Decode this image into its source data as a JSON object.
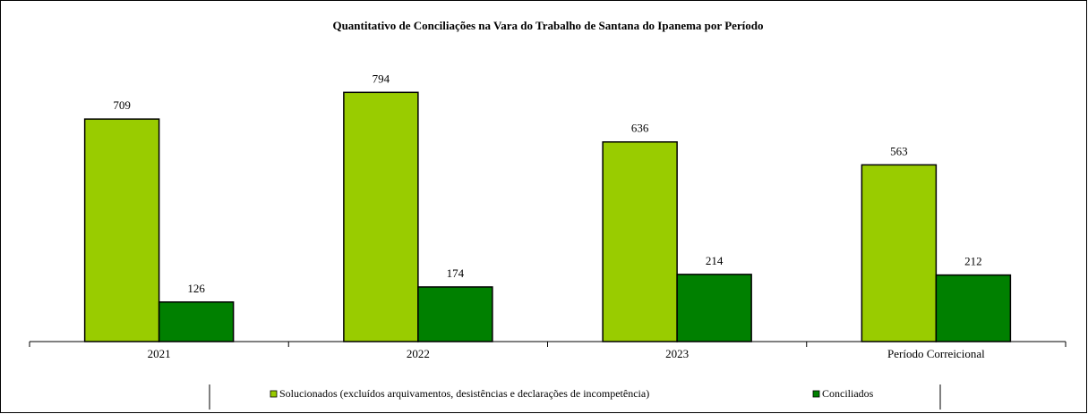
{
  "chart_data": {
    "type": "bar",
    "title": "Quantitativo de Conciliações na Vara do Trabalho de Santana do Ipanema por Período",
    "categories": [
      "2021",
      "2022",
      "2023",
      "Período Correicional"
    ],
    "series": [
      {
        "name": "Solucionados (excluídos arquivamentos, desistências e declarações de incompetência)",
        "color": "#99cc00",
        "values": [
          709,
          794,
          636,
          563
        ]
      },
      {
        "name": "Conciliados",
        "color": "#008000",
        "values": [
          126,
          174,
          214,
          212
        ]
      }
    ]
  }
}
